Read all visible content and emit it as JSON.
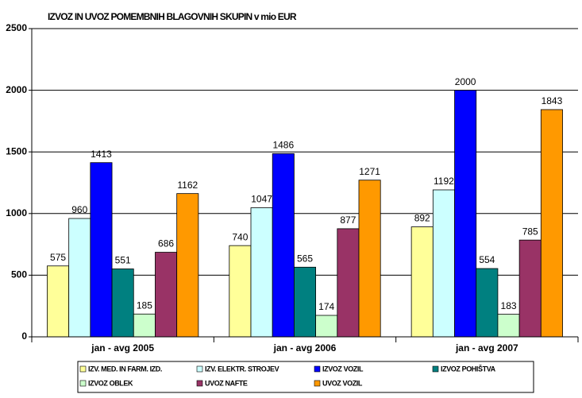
{
  "chart_data": {
    "type": "bar",
    "title": "IZVOZ IN UVOZ POMEMBNIH BLAGOVNIH SKUPIN v mio EUR",
    "categories": [
      "jan - avg 2005",
      "jan - avg 2006",
      "jan - avg 2007"
    ],
    "series": [
      {
        "name": "IZV. MED. IN FARM. IZD.",
        "color": "#FFFF99",
        "values": [
          575,
          740,
          892
        ]
      },
      {
        "name": "IZV. ELEKTR. STROJEV",
        "color": "#CCFFFF",
        "values": [
          960,
          1047,
          1192
        ]
      },
      {
        "name": "IZVOZ VOZIL",
        "color": "#0000FF",
        "values": [
          1413,
          1486,
          2000
        ]
      },
      {
        "name": "IZVOZ POHIŠTVA",
        "color": "#008080",
        "values": [
          551,
          565,
          554
        ]
      },
      {
        "name": "IZVOZ OBLEK",
        "color": "#CCFFCC",
        "values": [
          185,
          174,
          183
        ]
      },
      {
        "name": "UVOZ NAFTE",
        "color": "#993366",
        "values": [
          686,
          877,
          785
        ]
      },
      {
        "name": "UVOZ VOZIL",
        "color": "#FF9900",
        "values": [
          1162,
          1271,
          1843
        ]
      }
    ],
    "ylim": [
      0,
      2500
    ],
    "yticks": [
      0,
      500,
      1000,
      1500,
      2000,
      2500
    ],
    "grid": true,
    "legend": "bottom"
  }
}
